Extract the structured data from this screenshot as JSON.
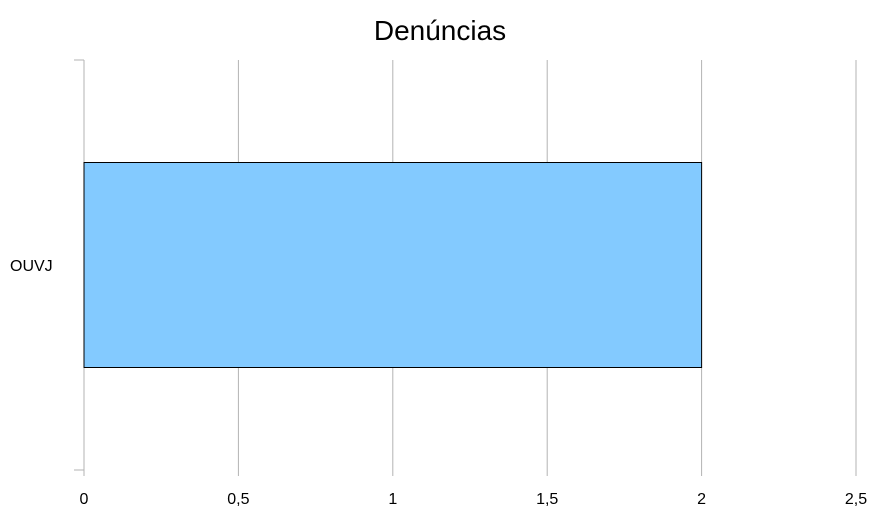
{
  "chart_data": {
    "type": "bar",
    "orientation": "horizontal",
    "title": "Denúncias",
    "categories": [
      "OUVJ"
    ],
    "values": [
      2
    ],
    "xlim": [
      0,
      2.5
    ],
    "xticks": [
      "0",
      "0,5",
      "1",
      "1,5",
      "2",
      "2,5"
    ],
    "grid": true,
    "legend": "none",
    "colors": {
      "bar": "#83caff",
      "bar_border": "#000000",
      "grid": "#b3b3b3",
      "axis": "#b3b3b3"
    }
  }
}
